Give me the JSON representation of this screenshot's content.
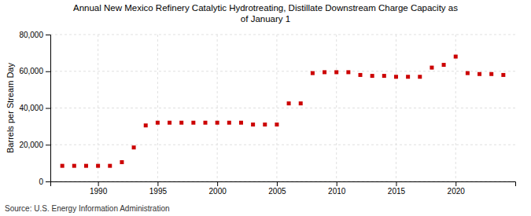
{
  "chart_data": {
    "type": "scatter",
    "title": "Annual New Mexico Refinery Catalytic Hydrotreating, Distillate Downstream Charge Capacity as\nof January 1",
    "ylabel": "Barrels per Stream Day",
    "source": "Source: U.S. Energy Information Administration",
    "color": "#cc0000",
    "marker": "square",
    "grid": true,
    "x": [
      1987,
      1988,
      1989,
      1990,
      1991,
      1992,
      1993,
      1994,
      1995,
      1996,
      1997,
      1998,
      1999,
      2000,
      2001,
      2002,
      2003,
      2004,
      2005,
      2006,
      2007,
      2008,
      2009,
      2010,
      2011,
      2012,
      2013,
      2014,
      2015,
      2016,
      2017,
      2018,
      2019,
      2020,
      2021,
      2022,
      2023,
      2024
    ],
    "values": [
      8500,
      8500,
      8500,
      8500,
      8500,
      10500,
      18500,
      30500,
      32000,
      32000,
      32000,
      32000,
      32000,
      32000,
      32000,
      32000,
      31000,
      31000,
      31000,
      42500,
      42500,
      59000,
      59500,
      59500,
      59500,
      58000,
      57500,
      57500,
      57000,
      57000,
      57000,
      62000,
      63500,
      68000,
      59000,
      58500,
      58500,
      58000
    ],
    "xlim": [
      1986,
      2025
    ],
    "xticks": [
      1990,
      1995,
      2000,
      2005,
      2010,
      2015,
      2020
    ],
    "ylim": [
      0,
      80000
    ],
    "yticks": [
      0,
      {
        "value": 20000,
        "label": "20,000"
      },
      {
        "value": 40000,
        "label": "40,000"
      },
      {
        "value": 60000,
        "label": "60,000"
      },
      {
        "value": 80000,
        "label": "80,000"
      }
    ]
  }
}
